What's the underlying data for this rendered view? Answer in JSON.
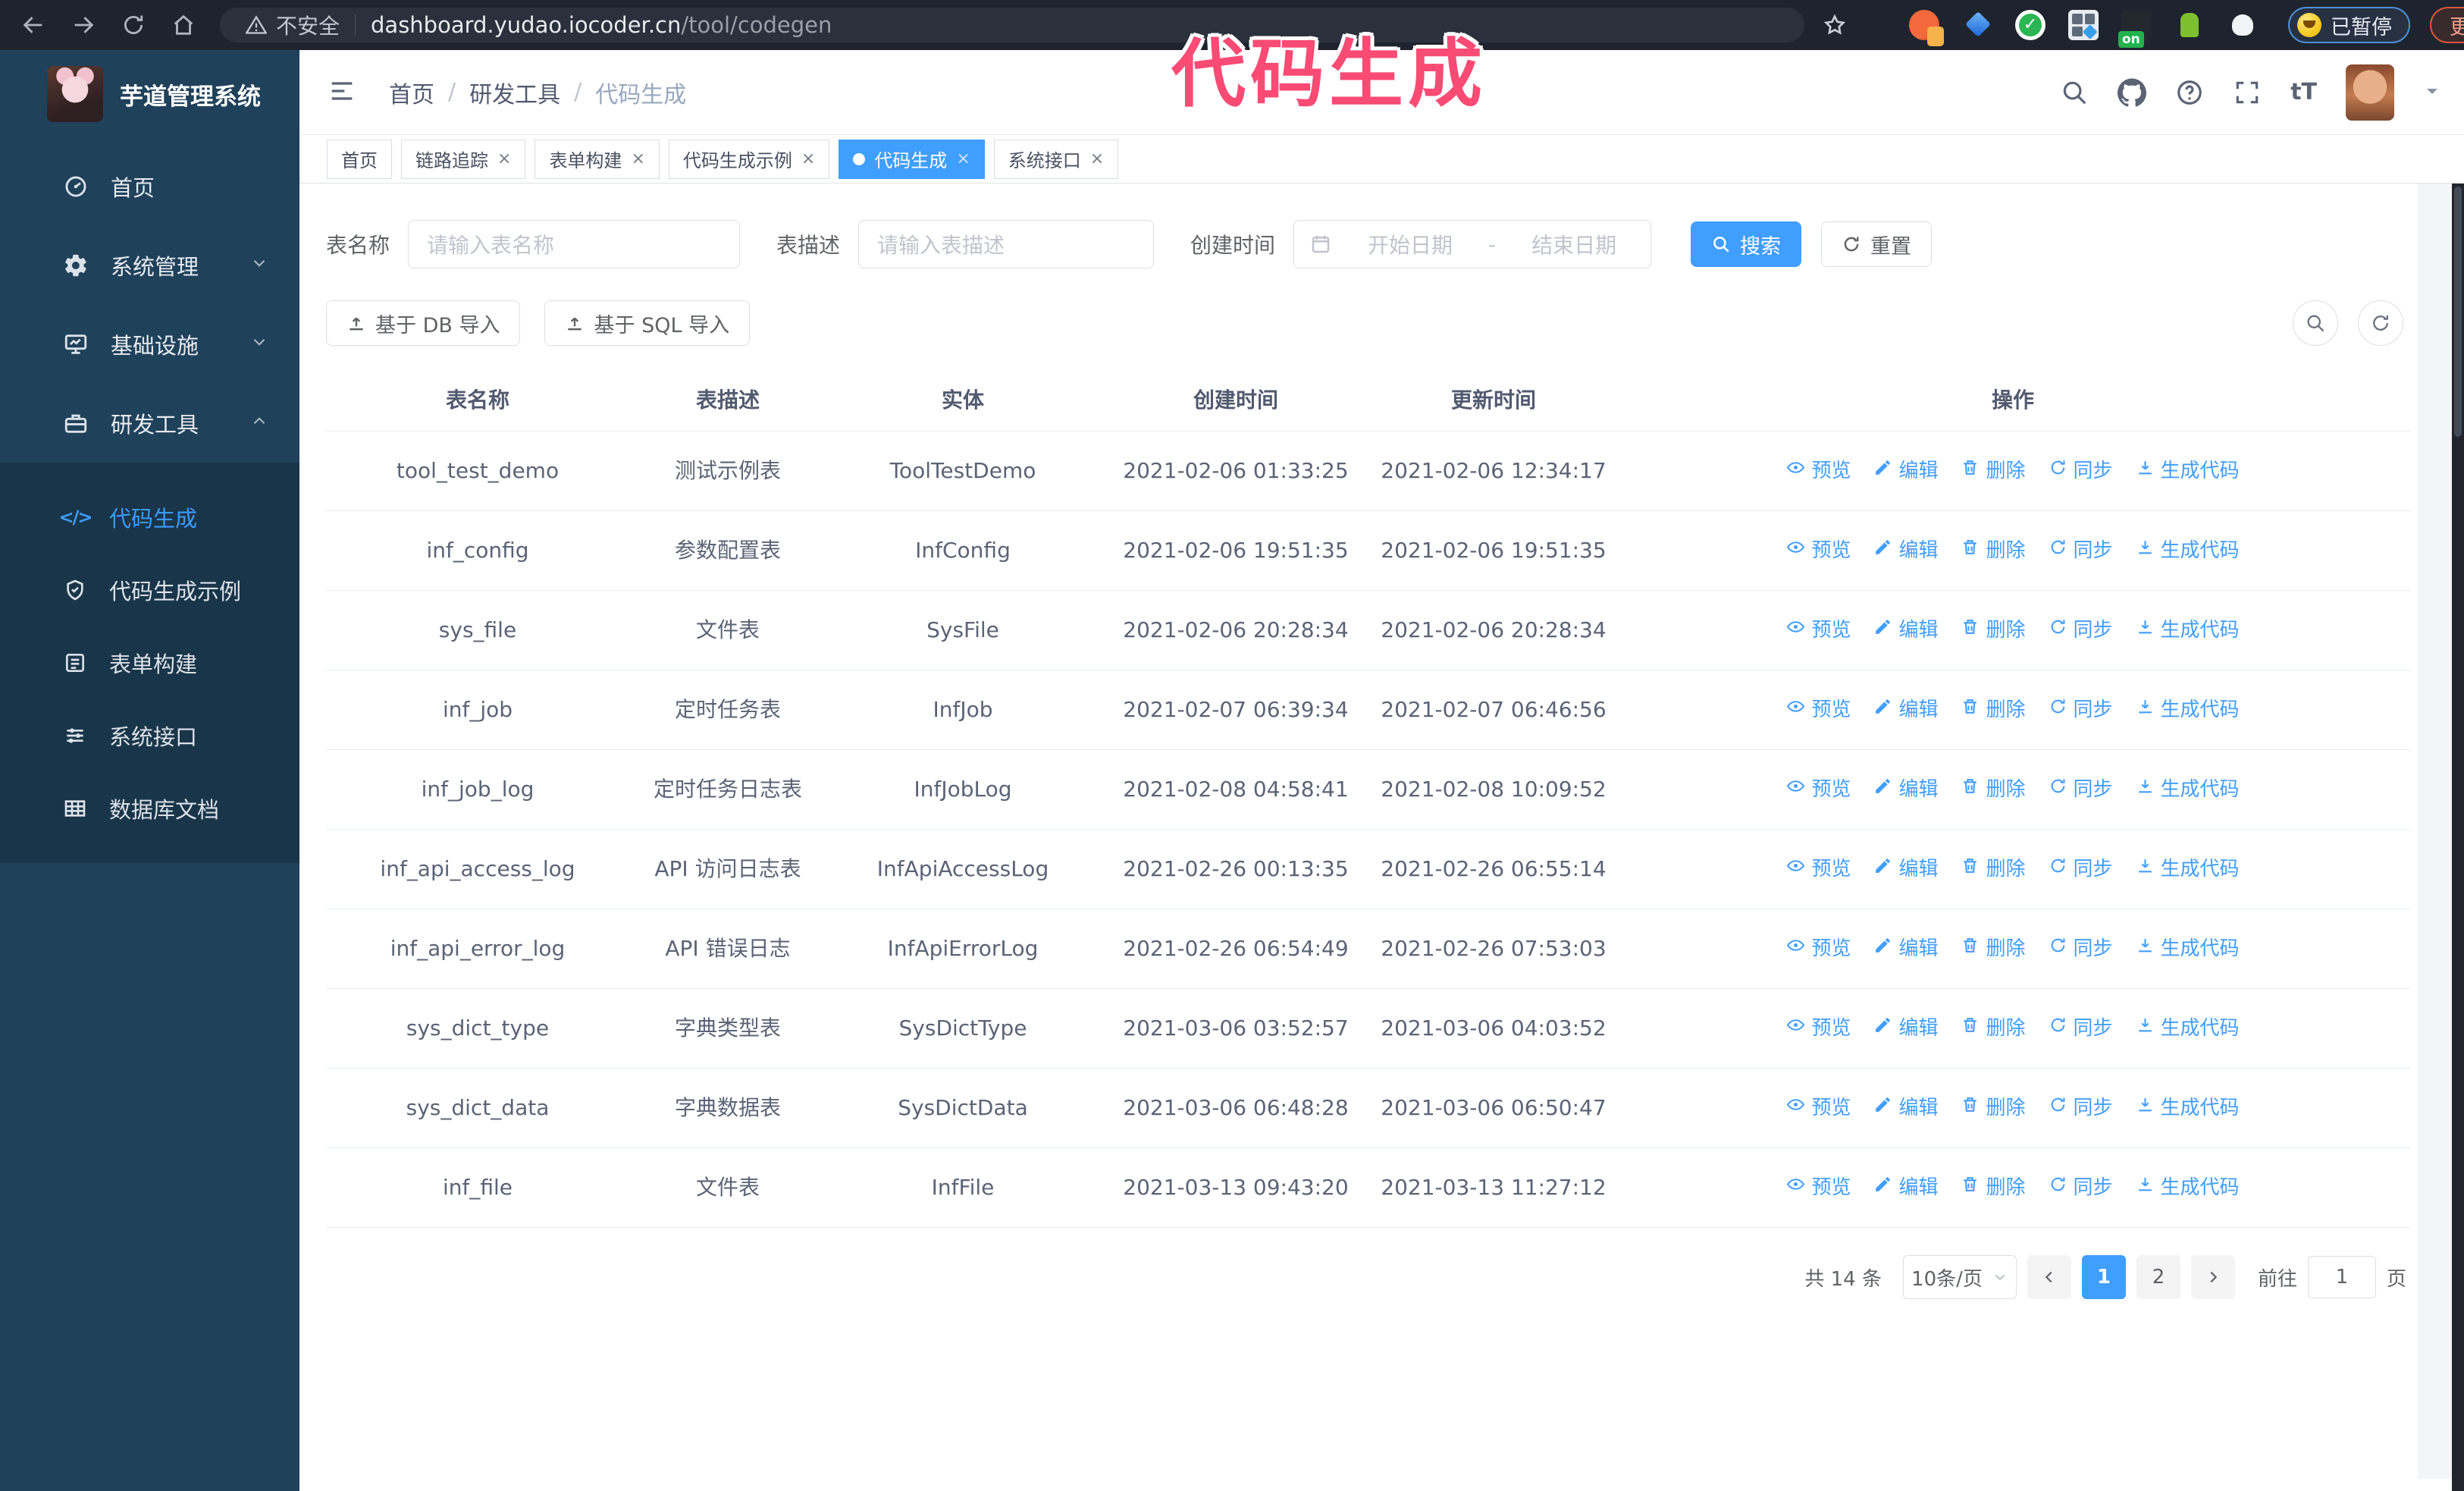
{
  "annotation": {
    "text": "代码生成"
  },
  "browser": {
    "nav_icons": [
      "back-icon",
      "forward-icon",
      "reload-icon",
      "home-icon"
    ],
    "insecure_label": "不安全",
    "url_host": "dashboard.yudao.iocoder.cn",
    "url_path": "/tool/codegen",
    "extension_icons": [
      "extension-icon-1",
      "extension-icon-2",
      "extension-icon-3",
      "extension-icon-4",
      "extension-icon-5",
      "extension-icon-6",
      "extension-icon-7"
    ],
    "paused_badge": "已暂停",
    "update_button": "更新"
  },
  "sidebar": {
    "title": "芋道管理系统",
    "items": [
      {
        "label": "首页",
        "icon": "dashboard-icon",
        "chevron": ""
      },
      {
        "label": "系统管理",
        "icon": "gear-icon",
        "chevron": "down"
      },
      {
        "label": "基础设施",
        "icon": "monitor-icon",
        "chevron": "down"
      },
      {
        "label": "研发工具",
        "icon": "toolbox-icon",
        "chevron": "up"
      }
    ],
    "subitems": [
      {
        "label": "代码生成",
        "icon": "code-icon",
        "active": true
      },
      {
        "label": "代码生成示例",
        "icon": "shield-check-icon",
        "active": false
      },
      {
        "label": "表单构建",
        "icon": "form-icon",
        "active": false
      },
      {
        "label": "系统接口",
        "icon": "sliders-icon",
        "active": false
      },
      {
        "label": "数据库文档",
        "icon": "table-grid-icon",
        "active": false
      }
    ]
  },
  "header": {
    "breadcrumb": [
      "首页",
      "研发工具",
      "代码生成"
    ],
    "icons": [
      "search-icon",
      "github-icon",
      "help-icon",
      "fullscreen-icon",
      "font-size-icon"
    ],
    "font_size_glyph": "tT"
  },
  "tabs": [
    {
      "label": "首页",
      "closable": false,
      "active": false
    },
    {
      "label": "链路追踪",
      "closable": true,
      "active": false
    },
    {
      "label": "表单构建",
      "closable": true,
      "active": false
    },
    {
      "label": "代码生成示例",
      "closable": true,
      "active": false
    },
    {
      "label": "代码生成",
      "closable": true,
      "active": true
    },
    {
      "label": "系统接口",
      "closable": true,
      "active": false
    }
  ],
  "filters": {
    "table_name_label": "表名称",
    "table_name_placeholder": "请输入表名称",
    "table_desc_label": "表描述",
    "table_desc_placeholder": "请输入表描述",
    "create_time_label": "创建时间",
    "date_start_placeholder": "开始日期",
    "date_separator": "-",
    "date_end_placeholder": "结束日期",
    "search_label": "搜索",
    "reset_label": "重置"
  },
  "toolbar": {
    "import_db_label": "基于 DB 导入",
    "import_sql_label": "基于 SQL 导入",
    "right_icons": [
      "search-toggle-icon",
      "refresh-list-icon"
    ]
  },
  "table": {
    "columns": [
      "表名称",
      "表描述",
      "实体",
      "创建时间",
      "更新时间",
      "操作"
    ],
    "actions": [
      "预览",
      "编辑",
      "删除",
      "同步",
      "生成代码"
    ],
    "action_icons": [
      "eye-icon",
      "edit-icon",
      "delete-icon",
      "sync-icon",
      "download-icon"
    ],
    "rows": [
      {
        "name": "tool_test_demo",
        "desc": "测试示例表",
        "entity": "ToolTestDemo",
        "created": "2021-02-06 01:33:25",
        "updated": "2021-02-06 12:34:17"
      },
      {
        "name": "inf_config",
        "desc": "参数配置表",
        "entity": "InfConfig",
        "created": "2021-02-06 19:51:35",
        "updated": "2021-02-06 19:51:35"
      },
      {
        "name": "sys_file",
        "desc": "文件表",
        "entity": "SysFile",
        "created": "2021-02-06 20:28:34",
        "updated": "2021-02-06 20:28:34"
      },
      {
        "name": "inf_job",
        "desc": "定时任务表",
        "entity": "InfJob",
        "created": "2021-02-07 06:39:34",
        "updated": "2021-02-07 06:46:56"
      },
      {
        "name": "inf_job_log",
        "desc": "定时任务日志表",
        "entity": "InfJobLog",
        "created": "2021-02-08 04:58:41",
        "updated": "2021-02-08 10:09:52"
      },
      {
        "name": "inf_api_access_log",
        "desc": "API 访问日志表",
        "entity": "InfApiAccessLog",
        "created": "2021-02-26 00:13:35",
        "updated": "2021-02-26 06:55:14"
      },
      {
        "name": "inf_api_error_log",
        "desc": "API 错误日志",
        "entity": "InfApiErrorLog",
        "created": "2021-02-26 06:54:49",
        "updated": "2021-02-26 07:53:03"
      },
      {
        "name": "sys_dict_type",
        "desc": "字典类型表",
        "entity": "SysDictType",
        "created": "2021-03-06 03:52:57",
        "updated": "2021-03-06 04:03:52"
      },
      {
        "name": "sys_dict_data",
        "desc": "字典数据表",
        "entity": "SysDictData",
        "created": "2021-03-06 06:48:28",
        "updated": "2021-03-06 06:50:47"
      },
      {
        "name": "inf_file",
        "desc": "文件表",
        "entity": "InfFile",
        "created": "2021-03-13 09:43:20",
        "updated": "2021-03-13 11:27:12"
      }
    ]
  },
  "pagination": {
    "total_label": "共 14 条",
    "page_size": "10条/页",
    "pages": [
      "1",
      "2"
    ],
    "active_page": "1",
    "goto_label": "前往",
    "goto_value": "1",
    "page_suffix": "页"
  },
  "colors": {
    "accent": "#409eff",
    "sidebar_bg": "#20415a",
    "submenu_bg": "#193549",
    "browser_bar_bg": "#1e242e",
    "annotation_pink": "#f94b74",
    "paused_border_blue": "#4d8fd6",
    "update_border_red": "#d9553f"
  }
}
